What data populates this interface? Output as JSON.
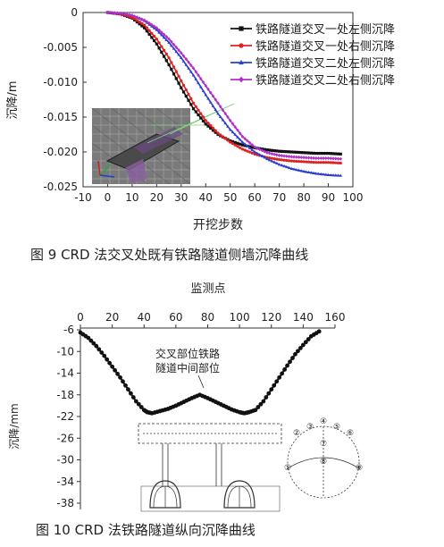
{
  "figure9": {
    "caption": "图 9 CRD 法交叉处既有铁路隧道侧墙沉降曲线",
    "chart_data": {
      "type": "line",
      "xlabel": "开挖步数",
      "ylabel": "沉降/m",
      "xlim": [
        -10,
        100
      ],
      "ylim": [
        -0.025,
        0
      ],
      "xticks": [
        "-10",
        "0",
        "10",
        "20",
        "30",
        "40",
        "50",
        "60",
        "70",
        "80",
        "90",
        "100"
      ],
      "yticks": [
        "0",
        "-0.005",
        "-0.010",
        "-0.015",
        "-0.020",
        "-0.025"
      ],
      "legend_position": "top-right",
      "series": [
        {
          "name": "铁路隧道交叉一处左侧沉降",
          "color": "#111111",
          "marker": "square",
          "x": [
            0,
            5,
            10,
            15,
            20,
            25,
            30,
            35,
            40,
            45,
            50,
            55,
            60,
            65,
            70,
            75,
            80,
            85,
            90,
            95
          ],
          "y": [
            0,
            -0.0002,
            -0.0008,
            -0.0022,
            -0.0045,
            -0.0075,
            -0.0108,
            -0.0138,
            -0.016,
            -0.0175,
            -0.0184,
            -0.019,
            -0.0194,
            -0.0197,
            -0.0199,
            -0.02,
            -0.0201,
            -0.0202,
            -0.0202,
            -0.0203
          ]
        },
        {
          "name": "铁路隧道交叉一处右侧沉降",
          "color": "#e02020",
          "marker": "circle",
          "x": [
            0,
            5,
            10,
            15,
            20,
            25,
            30,
            35,
            40,
            45,
            50,
            55,
            60,
            65,
            70,
            75,
            80,
            85,
            90,
            95
          ],
          "y": [
            0,
            -0.0002,
            -0.0007,
            -0.0018,
            -0.0038,
            -0.0065,
            -0.0098,
            -0.013,
            -0.0155,
            -0.0173,
            -0.0186,
            -0.0196,
            -0.0203,
            -0.0208,
            -0.0211,
            -0.0213,
            -0.0214,
            -0.0215,
            -0.0215,
            -0.0216
          ]
        },
        {
          "name": "铁路隧道交叉二处左侧沉降",
          "color": "#2a3fcf",
          "marker": "triangle",
          "x": [
            0,
            5,
            10,
            15,
            20,
            25,
            30,
            35,
            40,
            45,
            50,
            55,
            60,
            65,
            70,
            75,
            80,
            85,
            90,
            95
          ],
          "y": [
            0,
            -0.0001,
            -0.0004,
            -0.0012,
            -0.0025,
            -0.0043,
            -0.0065,
            -0.009,
            -0.0118,
            -0.0145,
            -0.0168,
            -0.0186,
            -0.02,
            -0.021,
            -0.0218,
            -0.0224,
            -0.0228,
            -0.0231,
            -0.0233,
            -0.0234
          ]
        },
        {
          "name": "铁路隧道交叉二处右侧沉降",
          "color": "#b030c8",
          "marker": "diamond",
          "x": [
            0,
            5,
            10,
            15,
            20,
            25,
            30,
            35,
            40,
            45,
            50,
            55,
            60,
            65,
            70,
            75,
            80,
            85,
            90,
            95
          ],
          "y": [
            0,
            -0.0001,
            -0.0004,
            -0.0011,
            -0.0022,
            -0.0038,
            -0.0058,
            -0.008,
            -0.0105,
            -0.013,
            -0.0155,
            -0.0178,
            -0.0193,
            -0.0201,
            -0.0205,
            -0.0207,
            -0.0208,
            -0.0209,
            -0.0209,
            -0.021
          ]
        }
      ]
    }
  },
  "figure10": {
    "caption": "图 10 CRD 法铁路隧道纵向沉降曲线",
    "chart_data": {
      "type": "line",
      "xlabel": "监测点",
      "xlabel_position": "top",
      "ylabel": "沉降/mm",
      "xlim": [
        0,
        160
      ],
      "ylim": [
        -38,
        -6
      ],
      "xticks": [
        "0",
        "20",
        "40",
        "60",
        "80",
        "100",
        "120",
        "140",
        "160"
      ],
      "yticks": [
        "-6",
        "-10",
        "-14",
        "-18",
        "-22",
        "-26",
        "-30",
        "-34",
        "-38"
      ],
      "annotation": "交叉部位铁路隧道中间部位",
      "annotation_lines": [
        "交叉部位铁路",
        "隧道中间部位"
      ],
      "series": [
        {
          "color": "#111111",
          "marker": "circle",
          "x": [
            0,
            5,
            10,
            15,
            20,
            25,
            30,
            35,
            40,
            42,
            45,
            50,
            55,
            60,
            65,
            70,
            75,
            80,
            85,
            90,
            95,
            100,
            103,
            106,
            110,
            115,
            120,
            125,
            130,
            135,
            140,
            145,
            150
          ],
          "y": [
            -6.5,
            -7.5,
            -9,
            -10.8,
            -12.8,
            -14.8,
            -17,
            -19.2,
            -20.8,
            -21.2,
            -21.4,
            -21,
            -20.6,
            -20,
            -19.3,
            -18.6,
            -18,
            -18.6,
            -19.3,
            -20,
            -20.7,
            -21.2,
            -21.4,
            -21.2,
            -20.8,
            -19.2,
            -17,
            -14.8,
            -12.6,
            -10.5,
            -8.8,
            -7.2,
            -6.3
          ]
        }
      ],
      "measurement_points": [
        "①",
        "②",
        "③",
        "④",
        "⑤",
        "⑥",
        "⑦",
        "⑧",
        "⑨"
      ]
    }
  }
}
